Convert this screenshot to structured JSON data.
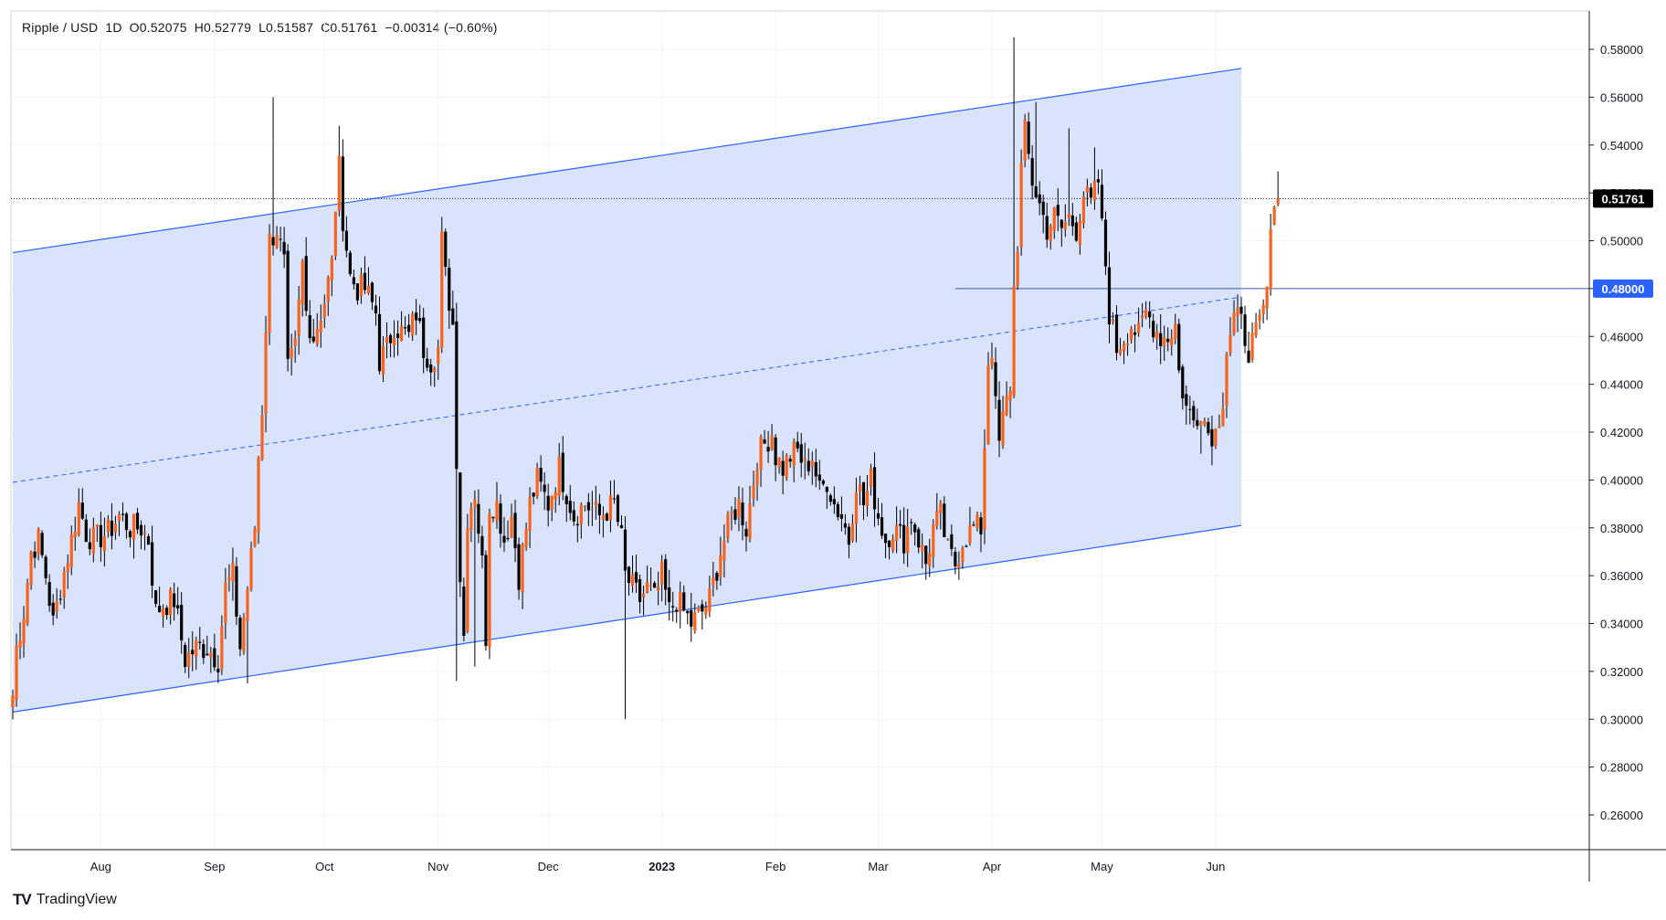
{
  "header": {
    "symbol": "Ripple / USD",
    "interval": "1D",
    "open": "O0.52075",
    "high": "H0.52779",
    "low": "L0.51587",
    "close": "C0.51761",
    "change": "−0.00314 (−0.60%)"
  },
  "brand": {
    "logo_text": "TV",
    "name": "TradingView"
  },
  "colors": {
    "up": "#f7631b",
    "down": "#000000",
    "channel_fill": "#d2defa",
    "channel_line": "#2962ff",
    "axis_text": "#131722",
    "grid": "#f0f3fa"
  },
  "chart_data": {
    "type": "candlestick",
    "title": "",
    "ylim": [
      0.25,
      0.595
    ],
    "y_ticks": [
      "0.58000",
      "0.56000",
      "0.54000",
      "0.52000",
      "0.50000",
      "0.48000",
      "0.46000",
      "0.44000",
      "0.42000",
      "0.40000",
      "0.38000",
      "0.36000",
      "0.34000",
      "0.32000",
      "0.30000",
      "0.28000",
      "0.26000"
    ],
    "x_ticks": [
      {
        "label": "Aug",
        "bold": false,
        "index": 24
      },
      {
        "label": "Sep",
        "bold": false,
        "index": 55
      },
      {
        "label": "Oct",
        "bold": false,
        "index": 85
      },
      {
        "label": "Nov",
        "bold": false,
        "index": 116
      },
      {
        "label": "Dec",
        "bold": false,
        "index": 146
      },
      {
        "label": "2023",
        "bold": true,
        "index": 177
      },
      {
        "label": "Feb",
        "bold": false,
        "index": 208
      },
      {
        "label": "Mar",
        "bold": false,
        "index": 236
      },
      {
        "label": "Apr",
        "bold": false,
        "index": 267
      },
      {
        "label": "May",
        "bold": false,
        "index": 297
      },
      {
        "label": "Jun",
        "bold": false,
        "index": 328
      }
    ],
    "channel": {
      "upper": [
        [
          0,
          0.495
        ],
        [
          335,
          0.572
        ]
      ],
      "lower": [
        [
          0,
          0.303
        ],
        [
          335,
          0.381
        ]
      ],
      "median": [
        [
          0,
          0.399
        ],
        [
          335,
          0.4765
        ]
      ]
    },
    "horizontal_line": {
      "price": 0.48,
      "label": "0.48000",
      "start_index": 257
    },
    "last_price": {
      "price": 0.51761,
      "label": "0.51761"
    },
    "anchors": [
      [
        0,
        0.31
      ],
      [
        1,
        0.33
      ],
      [
        3,
        0.345
      ],
      [
        5,
        0.37
      ],
      [
        7,
        0.375
      ],
      [
        9,
        0.36
      ],
      [
        11,
        0.34
      ],
      [
        13,
        0.355
      ],
      [
        16,
        0.375
      ],
      [
        18,
        0.39
      ],
      [
        20,
        0.378
      ],
      [
        22,
        0.375
      ],
      [
        26,
        0.378
      ],
      [
        29,
        0.385
      ],
      [
        32,
        0.38
      ],
      [
        35,
        0.38
      ],
      [
        37,
        0.375
      ],
      [
        39,
        0.345
      ],
      [
        41,
        0.348
      ],
      [
        44,
        0.35
      ],
      [
        47,
        0.325
      ],
      [
        50,
        0.33
      ],
      [
        53,
        0.33
      ],
      [
        56,
        0.325
      ],
      [
        58,
        0.355
      ],
      [
        60,
        0.36
      ],
      [
        62,
        0.33
      ],
      [
        64,
        0.355
      ],
      [
        66,
        0.38
      ],
      [
        67,
        0.41
      ],
      [
        68,
        0.43
      ],
      [
        70,
        0.5
      ],
      [
        72,
        0.505
      ],
      [
        74,
        0.49
      ],
      [
        75,
        0.445
      ],
      [
        77,
        0.455
      ],
      [
        79,
        0.49
      ],
      [
        80,
        0.47
      ],
      [
        82,
        0.46
      ],
      [
        85,
        0.475
      ],
      [
        87,
        0.49
      ],
      [
        88,
        0.515
      ],
      [
        89,
        0.53
      ],
      [
        90,
        0.51
      ],
      [
        92,
        0.485
      ],
      [
        94,
        0.48
      ],
      [
        96,
        0.48
      ],
      [
        99,
        0.47
      ],
      [
        100,
        0.45
      ],
      [
        102,
        0.455
      ],
      [
        104,
        0.465
      ],
      [
        106,
        0.462
      ],
      [
        108,
        0.46
      ],
      [
        110,
        0.47
      ],
      [
        112,
        0.455
      ],
      [
        114,
        0.45
      ],
      [
        116,
        0.455
      ],
      [
        117,
        0.5
      ],
      [
        118,
        0.485
      ],
      [
        120,
        0.465
      ],
      [
        121,
        0.41
      ],
      [
        122,
        0.36
      ],
      [
        123,
        0.335
      ],
      [
        124,
        0.385
      ],
      [
        126,
        0.395
      ],
      [
        128,
        0.365
      ],
      [
        129,
        0.335
      ],
      [
        130,
        0.39
      ],
      [
        132,
        0.39
      ],
      [
        134,
        0.375
      ],
      [
        136,
        0.385
      ],
      [
        138,
        0.36
      ],
      [
        141,
        0.39
      ],
      [
        143,
        0.4
      ],
      [
        146,
        0.39
      ],
      [
        149,
        0.405
      ],
      [
        151,
        0.395
      ],
      [
        153,
        0.385
      ],
      [
        156,
        0.39
      ],
      [
        160,
        0.385
      ],
      [
        164,
        0.39
      ],
      [
        166,
        0.375
      ],
      [
        167,
        0.36
      ],
      [
        169,
        0.355
      ],
      [
        171,
        0.35
      ],
      [
        173,
        0.355
      ],
      [
        175,
        0.35
      ],
      [
        177,
        0.36
      ],
      [
        179,
        0.345
      ],
      [
        181,
        0.35
      ],
      [
        183,
        0.345
      ],
      [
        185,
        0.34
      ],
      [
        188,
        0.345
      ],
      [
        190,
        0.35
      ],
      [
        193,
        0.37
      ],
      [
        196,
        0.385
      ],
      [
        198,
        0.39
      ],
      [
        200,
        0.38
      ],
      [
        201,
        0.39
      ],
      [
        203,
        0.41
      ],
      [
        205,
        0.415
      ],
      [
        207,
        0.42
      ],
      [
        208,
        0.41
      ],
      [
        210,
        0.405
      ],
      [
        212,
        0.41
      ],
      [
        214,
        0.412
      ],
      [
        216,
        0.405
      ],
      [
        218,
        0.41
      ],
      [
        220,
        0.395
      ],
      [
        222,
        0.4
      ],
      [
        224,
        0.39
      ],
      [
        226,
        0.385
      ],
      [
        228,
        0.375
      ],
      [
        230,
        0.4
      ],
      [
        232,
        0.39
      ],
      [
        234,
        0.4
      ],
      [
        236,
        0.385
      ],
      [
        238,
        0.375
      ],
      [
        240,
        0.38
      ],
      [
        243,
        0.375
      ],
      [
        245,
        0.385
      ],
      [
        247,
        0.375
      ],
      [
        249,
        0.365
      ],
      [
        251,
        0.38
      ],
      [
        253,
        0.385
      ],
      [
        255,
        0.37
      ],
      [
        257,
        0.365
      ],
      [
        259,
        0.375
      ],
      [
        262,
        0.38
      ],
      [
        264,
        0.38
      ],
      [
        266,
        0.45
      ],
      [
        267,
        0.455
      ],
      [
        268,
        0.43
      ],
      [
        269,
        0.415
      ],
      [
        270,
        0.425
      ],
      [
        272,
        0.44
      ],
      [
        273,
        0.48
      ],
      [
        274,
        0.5
      ],
      [
        275,
        0.53
      ],
      [
        276,
        0.545
      ],
      [
        278,
        0.525
      ],
      [
        280,
        0.515
      ],
      [
        282,
        0.505
      ],
      [
        284,
        0.51
      ],
      [
        286,
        0.505
      ],
      [
        288,
        0.51
      ],
      [
        290,
        0.505
      ],
      [
        292,
        0.52
      ],
      [
        294,
        0.515
      ],
      [
        296,
        0.525
      ],
      [
        297,
        0.505
      ],
      [
        298,
        0.49
      ],
      [
        299,
        0.47
      ],
      [
        301,
        0.455
      ],
      [
        303,
        0.46
      ],
      [
        305,
        0.465
      ],
      [
        307,
        0.46
      ],
      [
        309,
        0.47
      ],
      [
        311,
        0.465
      ],
      [
        313,
        0.46
      ],
      [
        315,
        0.46
      ],
      [
        317,
        0.465
      ],
      [
        318,
        0.445
      ],
      [
        320,
        0.43
      ],
      [
        322,
        0.425
      ],
      [
        324,
        0.43
      ],
      [
        326,
        0.42
      ],
      [
        328,
        0.42
      ],
      [
        330,
        0.435
      ],
      [
        331,
        0.455
      ],
      [
        333,
        0.468
      ],
      [
        335,
        0.465
      ],
      [
        337,
        0.455
      ],
      [
        339,
        0.46
      ],
      [
        341,
        0.47
      ],
      [
        342,
        0.48
      ],
      [
        343,
        0.5
      ],
      [
        344,
        0.52
      ],
      [
        345,
        0.5176
      ]
    ],
    "spikes": [
      [
        64,
        0.315
      ],
      [
        71,
        0.56
      ],
      [
        89,
        0.548
      ],
      [
        117,
        0.51
      ],
      [
        121,
        0.316
      ],
      [
        126,
        0.322
      ],
      [
        167,
        0.3
      ],
      [
        273,
        0.585
      ],
      [
        279,
        0.558
      ],
      [
        288,
        0.547
      ],
      [
        295,
        0.539
      ],
      [
        324,
        0.411
      ],
      [
        345,
        0.529
      ]
    ],
    "n_candles": 346
  }
}
